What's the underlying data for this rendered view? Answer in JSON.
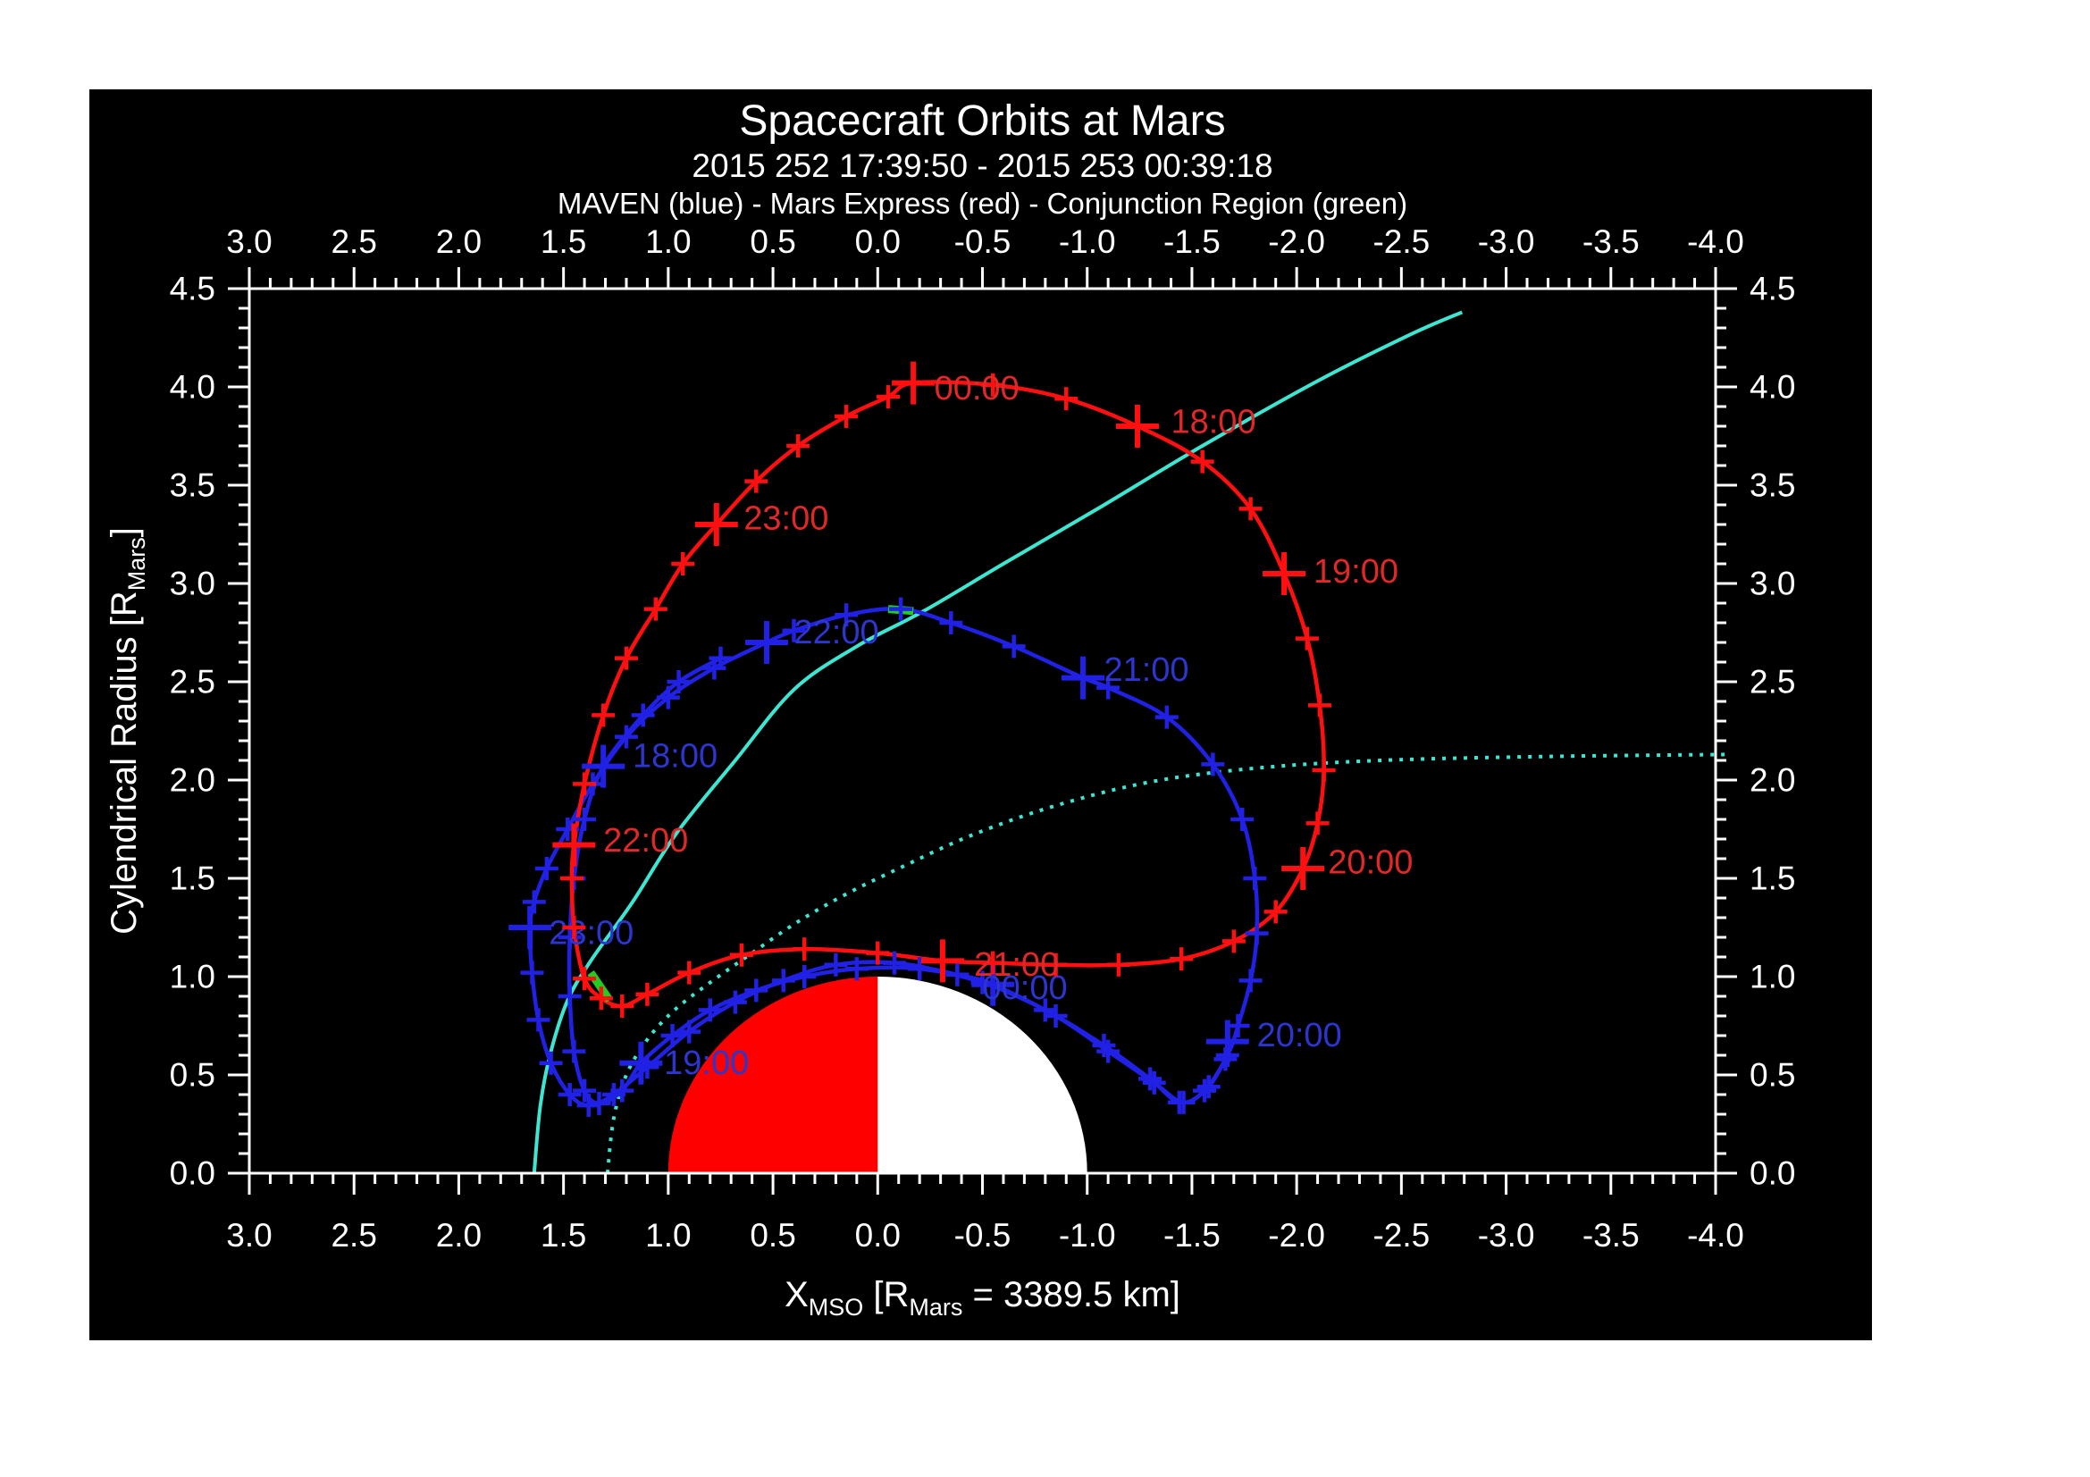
{
  "header": {
    "title": "Spacecraft Orbits at Mars",
    "subtitle": "2015 252 17:39:50 - 2015 253 00:39:18",
    "legend": "MAVEN (blue) - Mars Express (red) - Conjunction Region (green)"
  },
  "colors": {
    "background": "#000000",
    "page": "#ffffff",
    "frame": "#ffffff",
    "maven_curve": "#2121e6",
    "maven_label": "#2d35cf",
    "mex_curve": "#ff0f0f",
    "mex_label": "#e02828",
    "boundary_cyan": "#3ee6d2",
    "conjunction_green": "#22cc22",
    "mars_day": "#ff0000",
    "mars_night": "#ffffff"
  },
  "chart_data": {
    "type": "line",
    "title": "Spacecraft Orbits at Mars",
    "subtitle": "2015 252 17:39:50 - 2015 253 00:39:18",
    "legend_line": "MAVEN (blue) - Mars Express (red) - Conjunction Region (green)",
    "axes": {
      "x": {
        "title_parts": [
          {
            "text": "X"
          },
          {
            "text": "MSO",
            "sub": true
          },
          {
            "text": " [R"
          },
          {
            "text": "Mars",
            "sub": true
          },
          {
            "text": " = 3389.5 km]"
          }
        ],
        "range": [
          3.0,
          -4.0
        ],
        "major_ticks": [
          3.0,
          2.5,
          2.0,
          1.5,
          1.0,
          0.5,
          0.0,
          -0.5,
          -1.0,
          -1.5,
          -2.0,
          -2.5,
          -3.0,
          -3.5,
          -4.0
        ],
        "major_labels": [
          "3.0",
          "2.5",
          "2.0",
          "1.5",
          "1.0",
          "0.5",
          "0.0",
          "-0.5",
          "-1.0",
          "-1.5",
          "-2.0",
          "-2.5",
          "-3.0",
          "-3.5",
          "-4.0"
        ],
        "minor_step": 0.1
      },
      "y": {
        "title_parts": [
          {
            "text": "Cylendrical Radius [R"
          },
          {
            "text": "Mars",
            "sub": true
          },
          {
            "text": "]"
          }
        ],
        "range": [
          0.0,
          4.5
        ],
        "major_ticks": [
          0.0,
          0.5,
          1.0,
          1.5,
          2.0,
          2.5,
          3.0,
          3.5,
          4.0,
          4.5
        ],
        "major_labels": [
          "0.0",
          "0.5",
          "1.0",
          "1.5",
          "2.0",
          "2.5",
          "3.0",
          "3.5",
          "4.0",
          "4.5"
        ],
        "minor_step": 0.1
      }
    },
    "mars": {
      "center": [
        0.0,
        0.0
      ],
      "radius": 1.0,
      "dayside_x_range": [
        0.0,
        1.0
      ],
      "nightside_x_range": [
        -1.0,
        0.0
      ]
    },
    "series": [
      {
        "name": "MAVEN",
        "color_key": "maven_curve",
        "label_color_key": "maven_label",
        "closed": false,
        "points": [
          [
            0.75,
            2.62
          ],
          [
            0.95,
            2.5
          ],
          [
            1.12,
            2.33
          ],
          [
            1.31,
            2.07
          ],
          [
            1.4,
            1.8
          ],
          [
            1.45,
            1.5
          ],
          [
            1.47,
            1.2
          ],
          [
            1.47,
            0.9
          ],
          [
            1.45,
            0.62
          ],
          [
            1.4,
            0.42
          ],
          [
            1.33,
            0.355
          ],
          [
            1.22,
            0.42
          ],
          [
            1.13,
            0.56
          ],
          [
            0.98,
            0.7
          ],
          [
            0.8,
            0.83
          ],
          [
            0.58,
            0.93
          ],
          [
            0.35,
            1.0
          ],
          [
            0.1,
            1.04
          ],
          [
            -0.2,
            1.04
          ],
          [
            -0.5,
            0.97
          ],
          [
            -0.8,
            0.83
          ],
          [
            -1.08,
            0.65
          ],
          [
            -1.3,
            0.48
          ],
          [
            -1.44,
            0.36
          ],
          [
            -1.56,
            0.42
          ],
          [
            -1.67,
            0.6
          ],
          [
            -1.72,
            0.75
          ],
          [
            -1.78,
            0.98
          ],
          [
            -1.81,
            1.22
          ],
          [
            -1.8,
            1.5
          ],
          [
            -1.74,
            1.8
          ],
          [
            -1.6,
            2.08
          ],
          [
            -1.38,
            2.32
          ],
          [
            -1.1,
            2.47
          ],
          [
            -0.98,
            2.52
          ],
          [
            -0.65,
            2.68
          ],
          [
            -0.35,
            2.8
          ],
          [
            -0.11,
            2.87
          ],
          [
            0.15,
            2.84
          ],
          [
            0.4,
            2.76
          ],
          [
            0.53,
            2.7
          ],
          [
            0.78,
            2.57
          ],
          [
            1.0,
            2.42
          ],
          [
            1.2,
            2.22
          ],
          [
            1.36,
            1.98
          ],
          [
            1.48,
            1.75
          ],
          [
            1.58,
            1.55
          ],
          [
            1.64,
            1.38
          ],
          [
            1.66,
            1.25
          ],
          [
            1.65,
            1.02
          ],
          [
            1.62,
            0.78
          ],
          [
            1.56,
            0.56
          ],
          [
            1.47,
            0.4
          ],
          [
            1.38,
            0.345
          ],
          [
            1.26,
            0.4
          ],
          [
            1.1,
            0.54
          ],
          [
            0.9,
            0.72
          ],
          [
            0.68,
            0.87
          ],
          [
            0.45,
            0.98
          ],
          [
            0.2,
            1.06
          ],
          [
            -0.08,
            1.07
          ],
          [
            -0.38,
            1.01
          ],
          [
            -0.55,
            0.96
          ],
          [
            -0.85,
            0.8
          ],
          [
            -1.1,
            0.62
          ],
          [
            -1.32,
            0.46
          ],
          [
            -1.46,
            0.36
          ],
          [
            -1.58,
            0.44
          ],
          [
            -1.66,
            0.58
          ]
        ],
        "hour_marks": [
          {
            "label": "18:00",
            "x": 1.31,
            "y": 2.07
          },
          {
            "label": "19:00",
            "x": 1.13,
            "y": 0.56
          },
          {
            "label": "20:00",
            "x": -1.67,
            "y": 0.67
          },
          {
            "label": "21:00",
            "x": -0.98,
            "y": 2.52
          },
          {
            "label": "22:00",
            "x": 0.53,
            "y": 2.7
          },
          {
            "label": "23:00",
            "x": 1.66,
            "y": 1.25
          },
          {
            "label": "00:00",
            "x": -0.55,
            "y": 0.96
          }
        ],
        "labels": [
          {
            "text": "18:00",
            "x": 1.17,
            "y": 2.12
          },
          {
            "text": "19:00",
            "x": 1.02,
            "y": 0.56
          },
          {
            "text": "20:00",
            "x": -1.81,
            "y": 0.7
          },
          {
            "text": "21:00",
            "x": -1.08,
            "y": 2.56
          },
          {
            "text": "22:00",
            "x": 0.4,
            "y": 2.75
          },
          {
            "text": "23:00",
            "x": 1.57,
            "y": 1.22
          },
          {
            "text": "00:00",
            "x": -0.5,
            "y": 0.94
          }
        ]
      },
      {
        "name": "Mars Express",
        "color_key": "mex_curve",
        "label_color_key": "mex_label",
        "closed": true,
        "points": [
          [
            -0.17,
            4.02
          ],
          [
            -0.55,
            4.01
          ],
          [
            -0.9,
            3.94
          ],
          [
            -1.24,
            3.8
          ],
          [
            -1.55,
            3.62
          ],
          [
            -1.78,
            3.38
          ],
          [
            -1.94,
            3.05
          ],
          [
            -2.05,
            2.72
          ],
          [
            -2.11,
            2.38
          ],
          [
            -2.13,
            2.05
          ],
          [
            -2.1,
            1.78
          ],
          [
            -2.03,
            1.55
          ],
          [
            -1.9,
            1.33
          ],
          [
            -1.7,
            1.18
          ],
          [
            -1.45,
            1.09
          ],
          [
            -1.15,
            1.06
          ],
          [
            -0.85,
            1.06
          ],
          [
            -0.55,
            1.07
          ],
          [
            -0.31,
            1.08
          ],
          [
            0.0,
            1.12
          ],
          [
            0.35,
            1.14
          ],
          [
            0.65,
            1.11
          ],
          [
            0.9,
            1.02
          ],
          [
            1.1,
            0.91
          ],
          [
            1.22,
            0.85
          ],
          [
            1.32,
            0.89
          ],
          [
            1.4,
            0.99
          ],
          [
            1.45,
            1.25
          ],
          [
            1.46,
            1.5
          ],
          [
            1.45,
            1.67
          ],
          [
            1.4,
            1.98
          ],
          [
            1.31,
            2.33
          ],
          [
            1.2,
            2.62
          ],
          [
            1.06,
            2.87
          ],
          [
            0.93,
            3.1
          ],
          [
            0.77,
            3.3
          ],
          [
            0.58,
            3.52
          ],
          [
            0.38,
            3.7
          ],
          [
            0.15,
            3.85
          ],
          [
            -0.05,
            3.95
          ]
        ],
        "hour_marks": [
          {
            "label": "18:00",
            "x": -1.24,
            "y": 3.8
          },
          {
            "label": "19:00",
            "x": -1.94,
            "y": 3.05
          },
          {
            "label": "20:00",
            "x": -2.03,
            "y": 1.55
          },
          {
            "label": "21:00",
            "x": -0.31,
            "y": 1.08
          },
          {
            "label": "22:00",
            "x": 1.45,
            "y": 1.67
          },
          {
            "label": "23:00",
            "x": 0.77,
            "y": 3.3
          },
          {
            "label": "00:00",
            "x": -0.17,
            "y": 4.02
          }
        ],
        "labels": [
          {
            "text": "00:00",
            "x": -0.27,
            "y": 3.99
          },
          {
            "text": "18:00",
            "x": -1.4,
            "y": 3.82
          },
          {
            "text": "19:00",
            "x": -2.08,
            "y": 3.06
          },
          {
            "text": "20:00",
            "x": -2.15,
            "y": 1.58
          },
          {
            "text": "21:00",
            "x": -0.46,
            "y": 1.06
          },
          {
            "text": "22:00",
            "x": 1.31,
            "y": 1.69
          },
          {
            "text": "23:00",
            "x": 0.64,
            "y": 3.33
          }
        ]
      },
      {
        "name": "bow-shock-boundary",
        "color_key": "boundary_cyan",
        "style": "solid",
        "closed": false,
        "points": [
          [
            1.64,
            0.0
          ],
          [
            1.61,
            0.35
          ],
          [
            1.56,
            0.62
          ],
          [
            1.48,
            0.88
          ],
          [
            1.37,
            1.08
          ],
          [
            1.17,
            1.38
          ],
          [
            0.96,
            1.73
          ],
          [
            0.68,
            2.1
          ],
          [
            0.4,
            2.46
          ],
          [
            0.1,
            2.68
          ],
          [
            -0.22,
            2.86
          ],
          [
            -0.6,
            3.1
          ],
          [
            -1.05,
            3.38
          ],
          [
            -1.55,
            3.7
          ],
          [
            -2.1,
            4.03
          ],
          [
            -2.55,
            4.27
          ],
          [
            -2.79,
            4.38
          ]
        ]
      },
      {
        "name": "pileup-boundary",
        "color_key": "boundary_cyan",
        "style": "dotted",
        "closed": false,
        "points": [
          [
            1.29,
            0.0
          ],
          [
            1.26,
            0.28
          ],
          [
            1.2,
            0.5
          ],
          [
            1.1,
            0.68
          ],
          [
            0.97,
            0.83
          ],
          [
            0.8,
            0.97
          ],
          [
            0.6,
            1.12
          ],
          [
            0.38,
            1.28
          ],
          [
            0.15,
            1.42
          ],
          [
            -0.1,
            1.55
          ],
          [
            -0.45,
            1.72
          ],
          [
            -0.85,
            1.87
          ],
          [
            -1.3,
            1.99
          ],
          [
            -1.8,
            2.06
          ],
          [
            -2.4,
            2.1
          ],
          [
            -3.2,
            2.12
          ],
          [
            -4.05,
            2.13
          ]
        ]
      }
    ],
    "conjunction_segments": [
      {
        "on": "Mars Express",
        "points": [
          [
            1.37,
            1.02
          ],
          [
            1.28,
            0.88
          ]
        ]
      },
      {
        "on": "MAVEN",
        "points": [
          [
            -0.05,
            2.87
          ],
          [
            -0.17,
            2.86
          ]
        ]
      }
    ]
  }
}
